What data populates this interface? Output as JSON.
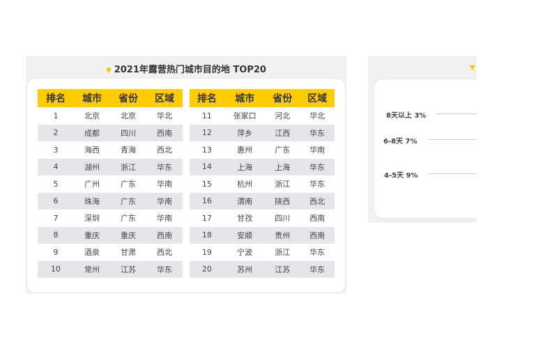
{
  "left_panel": {
    "title": "2021年露营热门城市目的地 TOP20",
    "headers": [
      "排名",
      "城市",
      "省份",
      "区域"
    ],
    "rows": [
      [
        "1",
        "北京",
        "北京",
        "华北"
      ],
      [
        "2",
        "成都",
        "四川",
        "西南"
      ],
      [
        "3",
        "海西",
        "青海",
        "西北"
      ],
      [
        "4",
        "湖州",
        "浙江",
        "华东"
      ],
      [
        "5",
        "广州",
        "广东",
        "华南"
      ],
      [
        "6",
        "珠海",
        "广东",
        "华南"
      ],
      [
        "7",
        "深圳",
        "广东",
        "华南"
      ],
      [
        "8",
        "重庆",
        "重庆",
        "西南"
      ],
      [
        "9",
        "酒泉",
        "甘肃",
        "西北"
      ],
      [
        "10",
        "常州",
        "江苏",
        "华东"
      ],
      [
        "11",
        "张家口",
        "河北",
        "华北"
      ],
      [
        "12",
        "萍乡",
        "江西",
        "华东"
      ],
      [
        "13",
        "惠州",
        "广东",
        "华南"
      ],
      [
        "14",
        "上海",
        "上海",
        "华东"
      ],
      [
        "15",
        "杭州",
        "浙江",
        "华东"
      ],
      [
        "16",
        "渭南",
        "陕西",
        "西北"
      ],
      [
        "17",
        "甘孜",
        "四川",
        "西南"
      ],
      [
        "18",
        "安顺",
        "贵州",
        "西南"
      ],
      [
        "19",
        "宁波",
        "浙江",
        "华东"
      ],
      [
        "20",
        "苏州",
        "江苏",
        "华东"
      ]
    ]
  },
  "right_panel": {
    "labels": [
      "8天以上 3%",
      "6-8天 7%",
      "4-5天 9%"
    ]
  },
  "colors": {
    "accent": "#ffcc00",
    "row_alt": "#e6e6ea",
    "panel_bg": "#f1f1f1"
  }
}
